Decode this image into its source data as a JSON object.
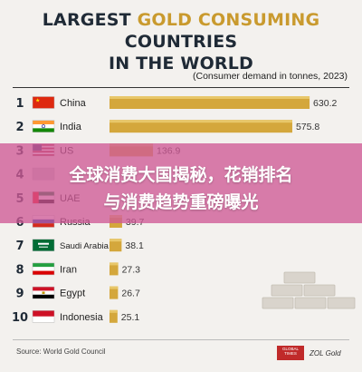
{
  "header": {
    "title_part1": "LARGEST ",
    "title_part2": "GOLD CONSUMING",
    "title_part3": " COUNTRIES",
    "title_line2": "IN THE WORLD",
    "subtitle": "(Consumer demand in tonnes, 2023)"
  },
  "banner": {
    "line1": "全球消费大国揭秘，花销排名",
    "line2": "与消费趋势重磅曝光"
  },
  "footer": {
    "source": "Source: World Gold Council",
    "logo_text": "GLOBAL TIMES",
    "watermark": "ZOL Gold"
  },
  "colors": {
    "gold": "#d4a73c",
    "title_gold": "#c99a2e",
    "title_dark": "#1f2a36",
    "banner": "#ce5a96"
  },
  "chart_data": {
    "type": "bar",
    "orientation": "horizontal",
    "ranks": [
      "1",
      "2",
      "3",
      "4",
      "5",
      "6",
      "7",
      "8",
      "9",
      "10"
    ],
    "categories": [
      "China",
      "India",
      "US",
      "",
      "UAE",
      "Russia",
      "Saudi Arabia",
      "Iran",
      "Egypt",
      "Indonesia"
    ],
    "values": [
      630.2,
      575.8,
      136.9,
      null,
      null,
      39.7,
      38.1,
      27.3,
      26.7,
      25.1
    ],
    "value_labels": [
      "630.2",
      "575.8",
      "136.9",
      "",
      "",
      "39.7",
      "38.1",
      "27.3",
      "26.7",
      "25.1"
    ],
    "flags": [
      "china-flag",
      "india-flag",
      "us-flag",
      "unknown-flag",
      "uae-flag",
      "russia-flag",
      "saudi-flag",
      "iran-flag",
      "egypt-flag",
      "indonesia-flag"
    ],
    "xlim": [
      0,
      650
    ]
  }
}
